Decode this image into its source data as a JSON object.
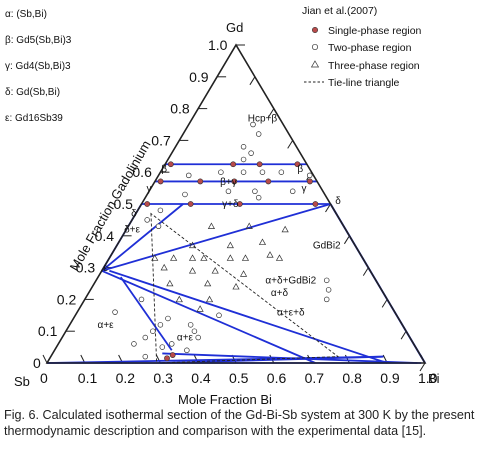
{
  "phases": [
    "α: (Sb,Bi)",
    "β: Gd5(Sb,Bi)3",
    "γ: Gd4(Sb,Bi)3",
    "δ: Gd(Sb,Bi)",
    "ε: Gd16Sb39"
  ],
  "caption": "Fig. 6. Calculated isothermal section of the Gd-Bi-Sb system at 300 K by the present thermodynamic description and comparison with the experimental data [15].",
  "chart_data": {
    "type": "ternary",
    "corners": {
      "top": "Gd",
      "left": "Sb",
      "right": "Bi"
    },
    "left_axis_label": "Mole Fraction Gadolinium",
    "bottom_axis_label": "Mole Fraction Bi",
    "left_ticks": [
      "0",
      "0.1",
      "0.2",
      "0.3",
      "0.4",
      "0.5",
      "0.6",
      "0.7",
      "0.8",
      "0.9",
      "1.0"
    ],
    "bottom_ticks": [
      "0",
      "0.1",
      "0.2",
      "0.3",
      "0.4",
      "0.5",
      "0.6",
      "0.7",
      "0.8",
      "0.9",
      "1.0"
    ],
    "legend": {
      "title": "Jian et al.(2007)",
      "entries": [
        "Single-phase region",
        "Two-phase region",
        "Three-phase region",
        "Tie-line triangle"
      ]
    },
    "colors": {
      "boundary": "#1f2fd6",
      "single_phase": "#b84a4a",
      "frame": "#222222"
    },
    "region_labels": [
      {
        "text": "Hcp+β",
        "bi": 0.19,
        "gd": 0.76
      },
      {
        "text": "β",
        "bi": 0.01,
        "gd": 0.6
      },
      {
        "text": "β",
        "bi": 0.37,
        "gd": 0.6
      },
      {
        "text": "β+γ",
        "bi": 0.2,
        "gd": 0.56
      },
      {
        "text": "γ",
        "bi": 0.0,
        "gd": 0.54
      },
      {
        "text": "γ",
        "bi": 0.41,
        "gd": 0.54
      },
      {
        "text": "γ+δ",
        "bi": 0.24,
        "gd": 0.49
      },
      {
        "text": "δ",
        "bi": 0.0,
        "gd": 0.46
      },
      {
        "text": "δ",
        "bi": 0.52,
        "gd": 0.5
      },
      {
        "text": "δ+ε",
        "bi": 0.02,
        "gd": 0.41
      },
      {
        "text": "ε",
        "bi": 0.01,
        "gd": 0.29
      },
      {
        "text": "GdBi2",
        "bi": 0.56,
        "gd": 0.36
      },
      {
        "text": "α+δ+GdBi2",
        "bi": 0.52,
        "gd": 0.25
      },
      {
        "text": "α+δ",
        "bi": 0.51,
        "gd": 0.21
      },
      {
        "text": "α+ε+δ",
        "bi": 0.57,
        "gd": 0.15
      },
      {
        "text": "α+ε",
        "bi": 0.1,
        "gd": 0.11
      },
      {
        "text": "α+ε",
        "bi": 0.33,
        "gd": 0.07
      }
    ],
    "boundaries": [
      [
        [
          0.0,
          0.625
        ],
        [
          0.375,
          0.625
        ]
      ],
      [
        [
          0.0,
          0.571
        ],
        [
          0.429,
          0.571
        ]
      ],
      [
        [
          0.0,
          0.5
        ],
        [
          0.5,
          0.5
        ]
      ],
      [
        [
          0.0,
          0.29
        ],
        [
          0.71,
          0.0
        ]
      ],
      [
        [
          0.0,
          0.29
        ],
        [
          0.0,
          0.5
        ]
      ],
      [
        [
          0.0,
          0.29
        ],
        [
          0.11,
          0.5
        ]
      ],
      [
        [
          0.0,
          0.29
        ],
        [
          0.5,
          0.5
        ]
      ],
      [
        [
          0.02,
          0.29
        ],
        [
          0.9,
          0.0
        ]
      ],
      [
        [
          0.06,
          0.27
        ],
        [
          0.31,
          0.04
        ]
      ],
      [
        [
          0.0,
          0.0
        ],
        [
          0.99,
          0.0
        ]
      ],
      [
        [
          0.0,
          0.0
        ],
        [
          0.88,
          0.02
        ]
      ],
      [
        [
          0.3,
          0.0
        ],
        [
          0.88,
          0.02
        ]
      ],
      [
        [
          0.29,
          0.03
        ],
        [
          0.98,
          0.0
        ]
      ],
      [
        [
          0.5,
          0.5
        ],
        [
          1.0,
          0.0
        ]
      ],
      [
        [
          0.5,
          0.5
        ],
        [
          0.667,
          0.333
        ]
      ],
      [
        [
          0.667,
          0.333
        ],
        [
          1.0,
          0.0
        ]
      ]
    ],
    "tie_line_triangle": [
      [
        0.04,
        0.47
      ],
      [
        0.29,
        0.0
      ],
      [
        0.76,
        0.02
      ]
    ],
    "single_phase_points": [
      [
        0.015,
        0.625
      ],
      [
        0.18,
        0.625
      ],
      [
        0.25,
        0.625
      ],
      [
        0.35,
        0.625
      ],
      [
        0.015,
        0.571
      ],
      [
        0.12,
        0.571
      ],
      [
        0.21,
        0.571
      ],
      [
        0.3,
        0.571
      ],
      [
        0.41,
        0.571
      ],
      [
        0.015,
        0.5
      ],
      [
        0.13,
        0.5
      ],
      [
        0.26,
        0.5
      ],
      [
        0.46,
        0.5
      ],
      [
        0.31,
        0.015
      ],
      [
        0.32,
        0.025
      ]
    ],
    "two_phase_points": [
      [
        0.17,
        0.75
      ],
      [
        0.2,
        0.72
      ],
      [
        0.18,
        0.68
      ],
      [
        0.2,
        0.64
      ],
      [
        0.21,
        0.66
      ],
      [
        0.16,
        0.6
      ],
      [
        0.22,
        0.6
      ],
      [
        0.32,
        0.6
      ],
      [
        0.27,
        0.6
      ],
      [
        0.08,
        0.59
      ],
      [
        0.4,
        0.59
      ],
      [
        0.21,
        0.54
      ],
      [
        0.28,
        0.54
      ],
      [
        0.38,
        0.54
      ],
      [
        0.1,
        0.53
      ],
      [
        0.3,
        0.52
      ],
      [
        0.04,
        0.45
      ],
      [
        0.06,
        0.48
      ],
      [
        0.08,
        0.43
      ],
      [
        0.2,
        0.06
      ],
      [
        0.22,
        0.08
      ],
      [
        0.23,
        0.1
      ],
      [
        0.24,
        0.12
      ],
      [
        0.25,
        0.14
      ],
      [
        0.15,
        0.2
      ],
      [
        0.1,
        0.16
      ],
      [
        0.32,
        0.12
      ],
      [
        0.34,
        0.1
      ],
      [
        0.36,
        0.08
      ],
      [
        0.3,
        0.06
      ],
      [
        0.28,
        0.05
      ],
      [
        0.38,
        0.15
      ],
      [
        0.25,
        0.02
      ],
      [
        0.35,
        0.04
      ],
      [
        0.61,
        0.26
      ],
      [
        0.63,
        0.23
      ],
      [
        0.64,
        0.2
      ]
    ],
    "three_phase_points": [
      [
        0.22,
        0.43
      ],
      [
        0.32,
        0.43
      ],
      [
        0.42,
        0.42
      ],
      [
        0.2,
        0.37
      ],
      [
        0.3,
        0.37
      ],
      [
        0.38,
        0.38
      ],
      [
        0.12,
        0.33
      ],
      [
        0.17,
        0.33
      ],
      [
        0.22,
        0.33
      ],
      [
        0.25,
        0.33
      ],
      [
        0.32,
        0.33
      ],
      [
        0.36,
        0.33
      ],
      [
        0.42,
        0.34
      ],
      [
        0.45,
        0.33
      ],
      [
        0.16,
        0.3
      ],
      [
        0.24,
        0.29
      ],
      [
        0.3,
        0.29
      ],
      [
        0.38,
        0.28
      ],
      [
        0.2,
        0.25
      ],
      [
        0.3,
        0.25
      ],
      [
        0.38,
        0.24
      ],
      [
        0.25,
        0.2
      ],
      [
        0.33,
        0.2
      ],
      [
        0.32,
        0.17
      ]
    ]
  }
}
